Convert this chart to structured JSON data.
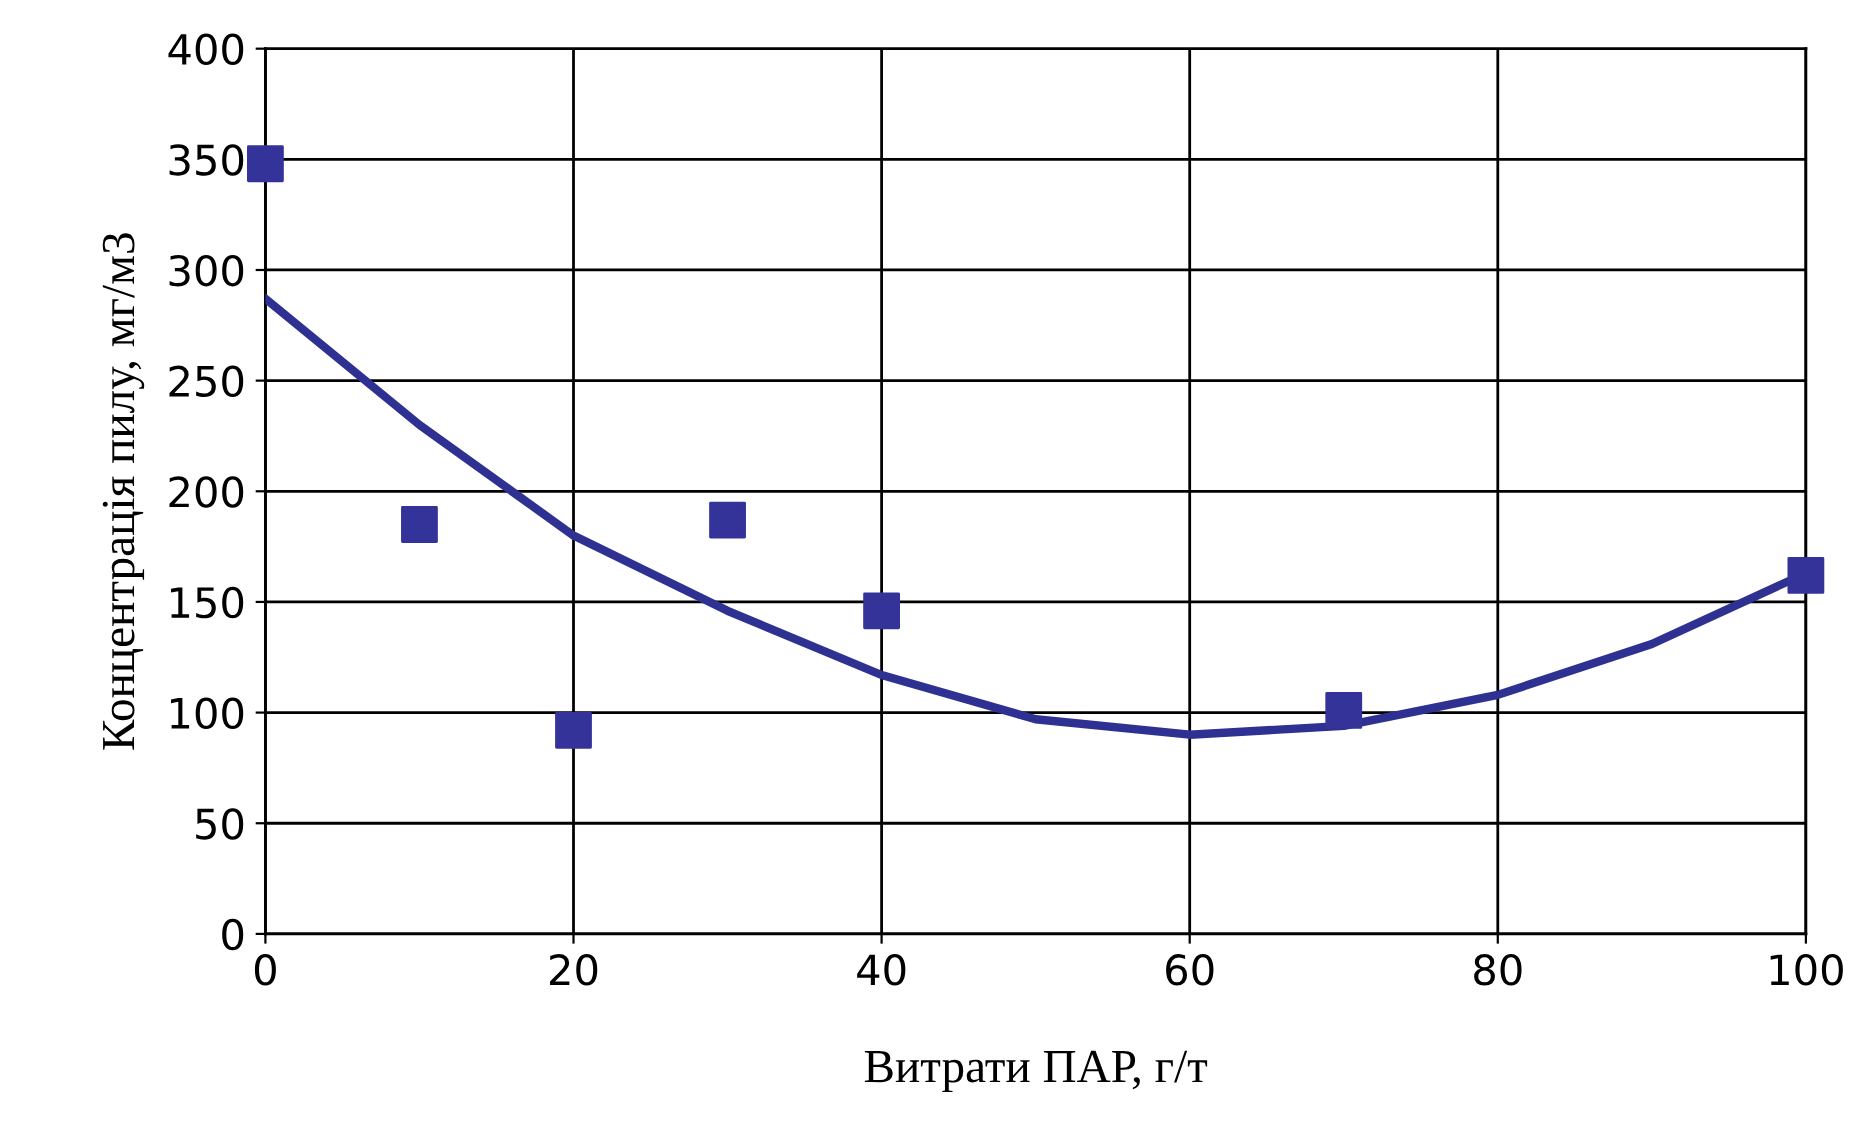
{
  "chart_data": {
    "type": "scatter",
    "xlabel": "Витрати ПАР, г/т",
    "ylabel": "Концентрація пилу, мг/м3",
    "xlim": [
      0,
      100
    ],
    "ylim": [
      0,
      400
    ],
    "xticks": [
      0,
      20,
      40,
      60,
      80,
      100
    ],
    "yticks": [
      0,
      50,
      100,
      150,
      200,
      250,
      300,
      350,
      400
    ],
    "grid": true,
    "series": [
      {
        "color": "#333399",
        "marker": "square",
        "x": [
          0,
          10,
          20,
          30,
          40,
          70,
          100
        ],
        "values": [
          348,
          185,
          92,
          187,
          146,
          101,
          162
        ]
      },
      {
        "type": "line",
        "color": "#2e3192",
        "marker": "none",
        "line_style": "solid",
        "x": [
          0,
          10,
          20,
          30,
          40,
          50,
          60,
          70,
          80,
          90,
          100
        ],
        "values": [
          287,
          230,
          180,
          146,
          117,
          97,
          90,
          94,
          108,
          131,
          163
        ]
      }
    ]
  }
}
